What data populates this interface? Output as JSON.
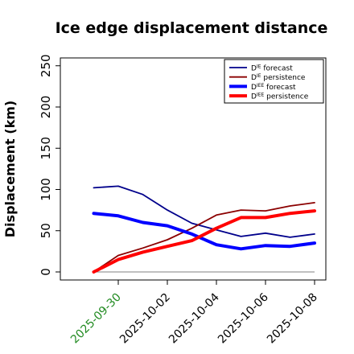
{
  "chart_data": {
    "type": "line",
    "title": "Ice edge displacement distance",
    "ylabel": "Displacement (km)",
    "xlabel": "",
    "ylim": [
      0,
      260
    ],
    "xlim": [
      "2025-09-28",
      "2025-10-08"
    ],
    "yticks": [
      "0",
      "50",
      "100",
      "150",
      "200",
      "250"
    ],
    "xticks": [
      {
        "label": "2025-09-30",
        "x": "2025-09-30",
        "color": "#228B22"
      },
      {
        "label": "2025-10-02",
        "x": "2025-10-02",
        "color": "#000000"
      },
      {
        "label": "2025-10-04",
        "x": "2025-10-04",
        "color": "#000000"
      },
      {
        "label": "2025-10-06",
        "x": "2025-10-06",
        "color": "#000000"
      },
      {
        "label": "2025-10-08",
        "x": "2025-10-08",
        "color": "#000000"
      }
    ],
    "x": [
      "2025-09-29",
      "2025-09-30",
      "2025-10-01",
      "2025-10-02",
      "2025-10-03",
      "2025-10-04",
      "2025-10-05",
      "2025-10-06",
      "2025-10-07",
      "2025-10-08"
    ],
    "series": [
      {
        "name": "D^IE forecast",
        "name_main": "D",
        "name_sup": "IE",
        "name_rest": " forecast",
        "color": "#00008B",
        "width": 1.8,
        "values": [
          102,
          104,
          94,
          75,
          59,
          51,
          43,
          47,
          42,
          46
        ]
      },
      {
        "name": "D^IE persistence",
        "name_main": "D",
        "name_sup": "IE",
        "name_rest": " persistence",
        "color": "#8B0000",
        "width": 1.8,
        "values": [
          0,
          20,
          29,
          39,
          53,
          69,
          75,
          74,
          80,
          84
        ]
      },
      {
        "name": "D^IEE forecast",
        "name_main": "D",
        "name_sup": "IEE",
        "name_rest": " forecast",
        "color": "#0000FF",
        "width": 4,
        "values": [
          71,
          68,
          60,
          56,
          46,
          33,
          28,
          32,
          31,
          35
        ]
      },
      {
        "name": "D^IEE persistence",
        "name_main": "D",
        "name_sup": "IEE",
        "name_rest": " persistence",
        "color": "#FF0000",
        "width": 4,
        "values": [
          0,
          15,
          24,
          31,
          38,
          53,
          66,
          66,
          71,
          74
        ]
      }
    ],
    "baseline": {
      "y": 0,
      "color": "#808080"
    },
    "grid": false,
    "legend_position": "top-right"
  }
}
